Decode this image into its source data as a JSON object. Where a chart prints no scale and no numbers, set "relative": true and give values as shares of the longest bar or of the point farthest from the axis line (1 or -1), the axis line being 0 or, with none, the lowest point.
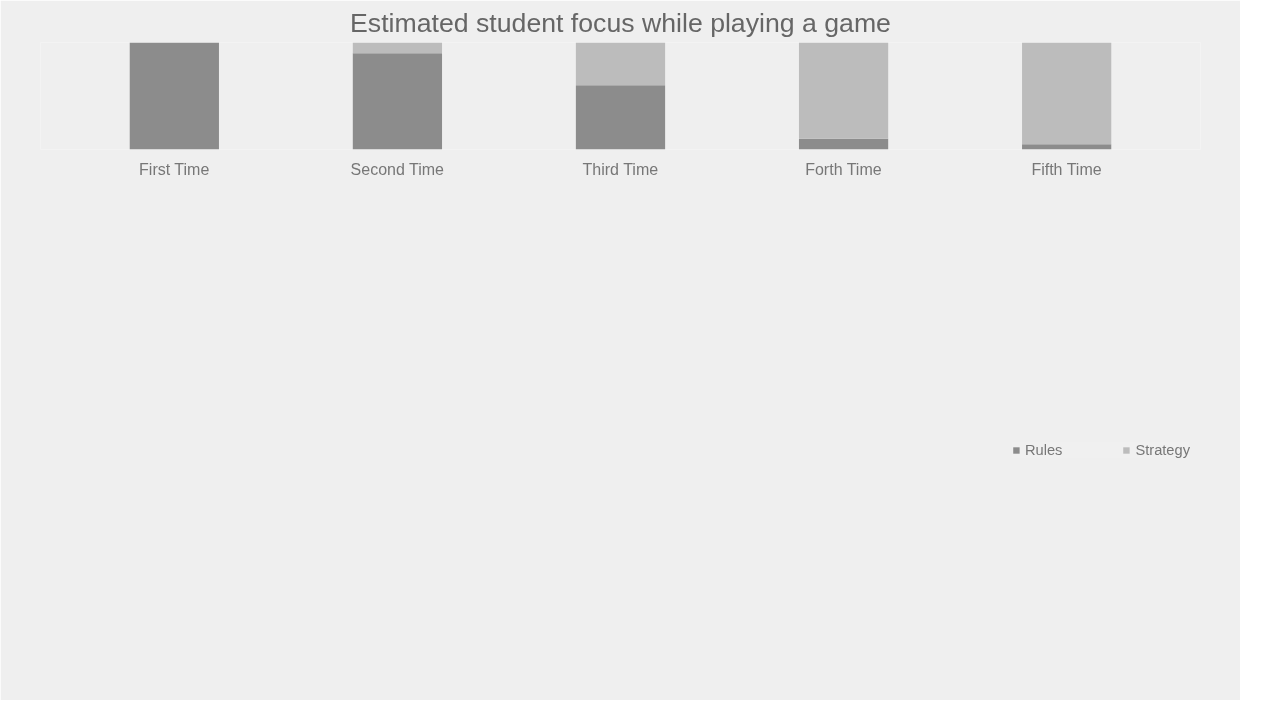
{
  "chart_data": {
    "type": "bar",
    "title": "Estimated student focus while playing a game",
    "categories": [
      "First Time",
      "Second Time",
      "Third Time",
      "Forth Time",
      "Fifth Time"
    ],
    "stacked": true,
    "relative": true,
    "legend": "bottom",
    "series": [
      {
        "name": "Rules",
        "color": "#8c8c8c",
        "values": [
          1.0,
          0.9,
          0.6,
          0.1,
          0.05
        ]
      },
      {
        "name": "Strategy",
        "color": "#bcbcbc",
        "values": [
          0,
          0.1,
          0.4,
          0.9,
          0.95
        ]
      }
    ]
  }
}
